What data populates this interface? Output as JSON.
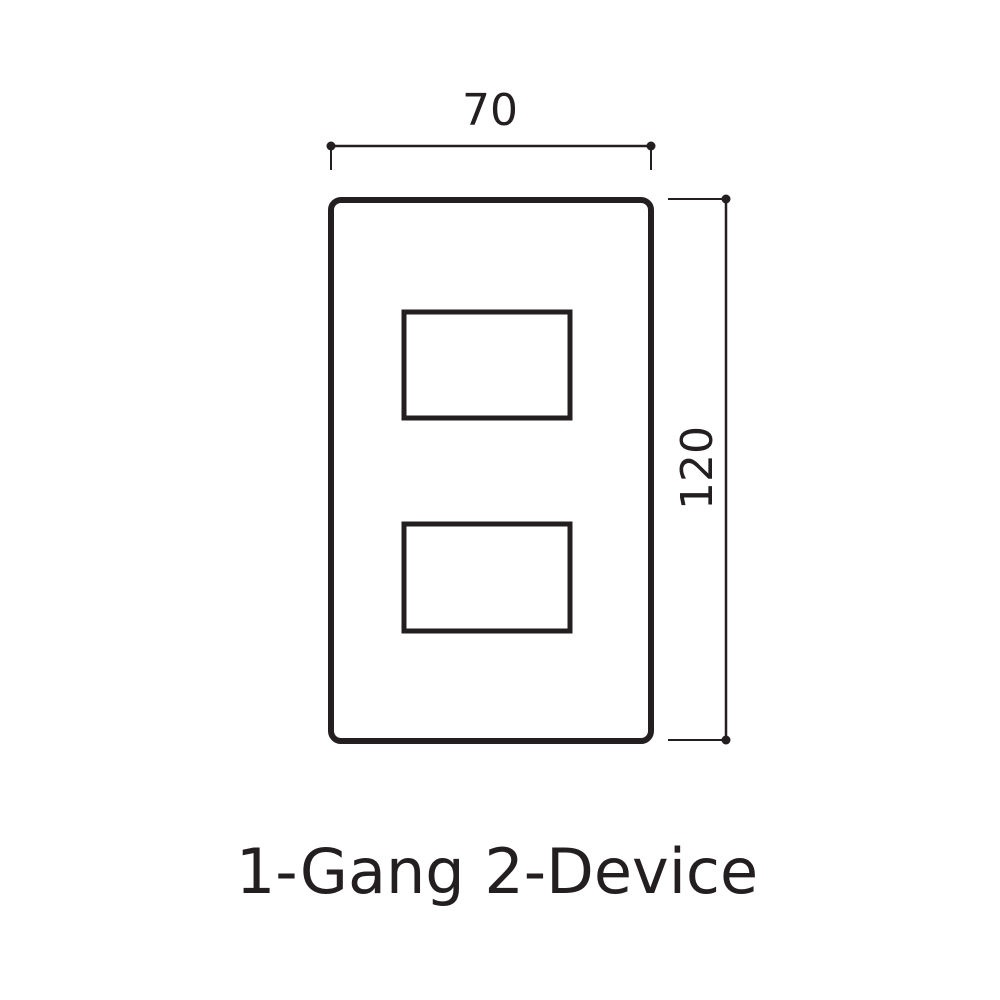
{
  "dimensions": {
    "width_label": "70",
    "height_label": "120"
  },
  "caption": "1-Gang 2-Device",
  "colors": {
    "stroke": "#231f20",
    "background": "#ffffff"
  }
}
